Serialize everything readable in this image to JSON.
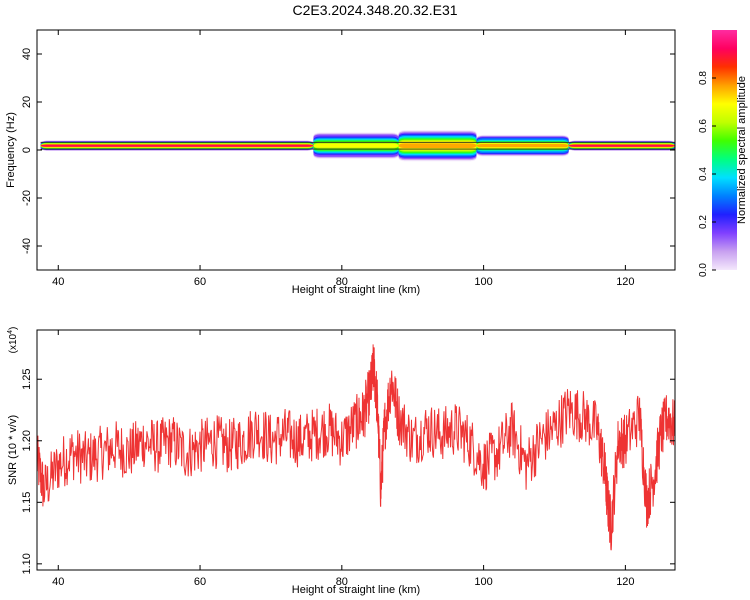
{
  "title": "C2E3.2024.348.20.32.E31",
  "chart_data": [
    {
      "type": "heatmap",
      "xlabel": "Height of straight line (km)",
      "ylabel": "Frequency (Hz)",
      "xlim": [
        37,
        127
      ],
      "ylim": [
        -50,
        50
      ],
      "x_ticks": [
        "40",
        "60",
        "80",
        "100",
        "120"
      ],
      "y_ticks": [
        "40",
        "20",
        "0",
        "-20",
        "-40"
      ],
      "colorbar": {
        "label": "Normalized spectral amplitude",
        "range": [
          0,
          1
        ],
        "ticks": [
          "0.0",
          "0.2",
          "0.4",
          "0.6",
          "0.8"
        ],
        "colors": [
          "#f4e8fc",
          "#c8a0f0",
          "#8040ff",
          "#2020ff",
          "#0080ff",
          "#00e0ff",
          "#00ff80",
          "#40ff00",
          "#c0ff00",
          "#ffff00",
          "#ffa000",
          "#ff3000",
          "#ff0060",
          "#ff2ca0"
        ]
      },
      "band": {
        "center_hz": 1.8,
        "segments": [
          {
            "x0": 37.5,
            "x1": 76,
            "halfwidth_hz": 2.2,
            "peak": 0.95
          },
          {
            "x0": 76,
            "x1": 88,
            "halfwidth_hz": 5.5,
            "peak": 0.7
          },
          {
            "x0": 88,
            "x1": 99,
            "halfwidth_hz": 6.5,
            "peak": 0.8
          },
          {
            "x0": 99,
            "x1": 112,
            "halfwidth_hz": 4.5,
            "peak": 0.75
          },
          {
            "x0": 112,
            "x1": 127,
            "halfwidth_hz": 2.2,
            "peak": 0.95
          }
        ]
      }
    },
    {
      "type": "line",
      "xlabel": "Height of straight line (km)",
      "ylabel": "SNR (10 * v/v)",
      "y_multiplier": "(x10",
      "y_multiplier_exp": "4",
      "y_multiplier_close": ")",
      "xlim": [
        37,
        127
      ],
      "ylim": [
        1.095,
        1.29
      ],
      "x_ticks": [
        "40",
        "60",
        "80",
        "100",
        "120"
      ],
      "y_ticks": [
        "1.10",
        "1.15",
        "1.20",
        "1.25"
      ],
      "color": "#ee3333",
      "series": [
        {
          "x": [
            37,
            38,
            40,
            42,
            44,
            46,
            48,
            50,
            52,
            54,
            56,
            58,
            60,
            62,
            64,
            66,
            68,
            70,
            72,
            74,
            76,
            78,
            80,
            82,
            83,
            84,
            84.5,
            85,
            85.5,
            86,
            87,
            88,
            90,
            92,
            94,
            96,
            98,
            100,
            102,
            104,
            106,
            108,
            110,
            112,
            114,
            116,
            117,
            117.5,
            118,
            119,
            120,
            122,
            123,
            124,
            125,
            126,
            127
          ],
          "y": [
            1.185,
            1.16,
            1.18,
            1.19,
            1.185,
            1.19,
            1.195,
            1.19,
            1.2,
            1.195,
            1.2,
            1.19,
            1.195,
            1.2,
            1.195,
            1.2,
            1.21,
            1.2,
            1.205,
            1.2,
            1.205,
            1.21,
            1.2,
            1.215,
            1.22,
            1.24,
            1.26,
            1.23,
            1.16,
            1.21,
            1.25,
            1.22,
            1.2,
            1.21,
            1.205,
            1.21,
            1.2,
            1.18,
            1.19,
            1.21,
            1.18,
            1.2,
            1.21,
            1.225,
            1.22,
            1.21,
            1.18,
            1.15,
            1.13,
            1.2,
            1.2,
            1.22,
            1.15,
            1.17,
            1.205,
            1.22,
            1.21
          ]
        }
      ]
    }
  ]
}
